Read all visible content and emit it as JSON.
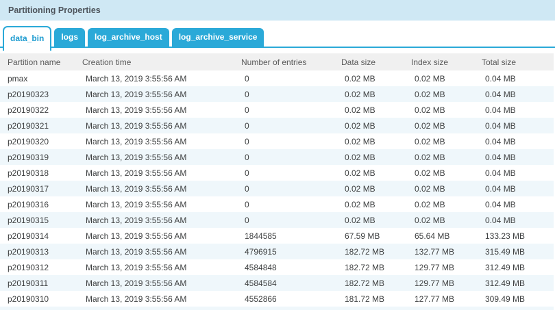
{
  "panel": {
    "title": "Partitioning Properties"
  },
  "tabs": [
    {
      "label": "data_bin",
      "active": true
    },
    {
      "label": "logs",
      "active": false
    },
    {
      "label": "log_archive_host",
      "active": false
    },
    {
      "label": "log_archive_service",
      "active": false
    }
  ],
  "table": {
    "columns": [
      "Partition name",
      "Creation time",
      "Number of entries",
      "Data size",
      "Index size",
      "Total size"
    ],
    "rows": [
      [
        "pmax",
        "March 13, 2019 3:55:56 AM",
        "0",
        "0.02 MB",
        "0.02 MB",
        "0.04 MB"
      ],
      [
        "p20190323",
        "March 13, 2019 3:55:56 AM",
        "0",
        "0.02 MB",
        "0.02 MB",
        "0.04 MB"
      ],
      [
        "p20190322",
        "March 13, 2019 3:55:56 AM",
        "0",
        "0.02 MB",
        "0.02 MB",
        "0.04 MB"
      ],
      [
        "p20190321",
        "March 13, 2019 3:55:56 AM",
        "0",
        "0.02 MB",
        "0.02 MB",
        "0.04 MB"
      ],
      [
        "p20190320",
        "March 13, 2019 3:55:56 AM",
        "0",
        "0.02 MB",
        "0.02 MB",
        "0.04 MB"
      ],
      [
        "p20190319",
        "March 13, 2019 3:55:56 AM",
        "0",
        "0.02 MB",
        "0.02 MB",
        "0.04 MB"
      ],
      [
        "p20190318",
        "March 13, 2019 3:55:56 AM",
        "0",
        "0.02 MB",
        "0.02 MB",
        "0.04 MB"
      ],
      [
        "p20190317",
        "March 13, 2019 3:55:56 AM",
        "0",
        "0.02 MB",
        "0.02 MB",
        "0.04 MB"
      ],
      [
        "p20190316",
        "March 13, 2019 3:55:56 AM",
        "0",
        "0.02 MB",
        "0.02 MB",
        "0.04 MB"
      ],
      [
        "p20190315",
        "March 13, 2019 3:55:56 AM",
        "0",
        "0.02 MB",
        "0.02 MB",
        "0.04 MB"
      ],
      [
        "p20190314",
        "March 13, 2019 3:55:56 AM",
        "1844585",
        "67.59 MB",
        "65.64 MB",
        "133.23 MB"
      ],
      [
        "p20190313",
        "March 13, 2019 3:55:56 AM",
        "4796915",
        "182.72 MB",
        "132.77 MB",
        "315.49 MB"
      ],
      [
        "p20190312",
        "March 13, 2019 3:55:56 AM",
        "4584848",
        "182.72 MB",
        "129.77 MB",
        "312.49 MB"
      ],
      [
        "p20190311",
        "March 13, 2019 3:55:56 AM",
        "4584584",
        "182.72 MB",
        "129.77 MB",
        "312.49 MB"
      ],
      [
        "p20190310",
        "March 13, 2019 3:55:56 AM",
        "4552866",
        "181.72 MB",
        "127.77 MB",
        "309.49 MB"
      ]
    ]
  },
  "colors": {
    "accent": "#2aa9d8",
    "active_tab_text": "#1e9cd0",
    "titlebar_bg": "#cfe8f4",
    "column_header_bg": "#f0f0f0",
    "alt_row_bg": "#eff7fb"
  }
}
